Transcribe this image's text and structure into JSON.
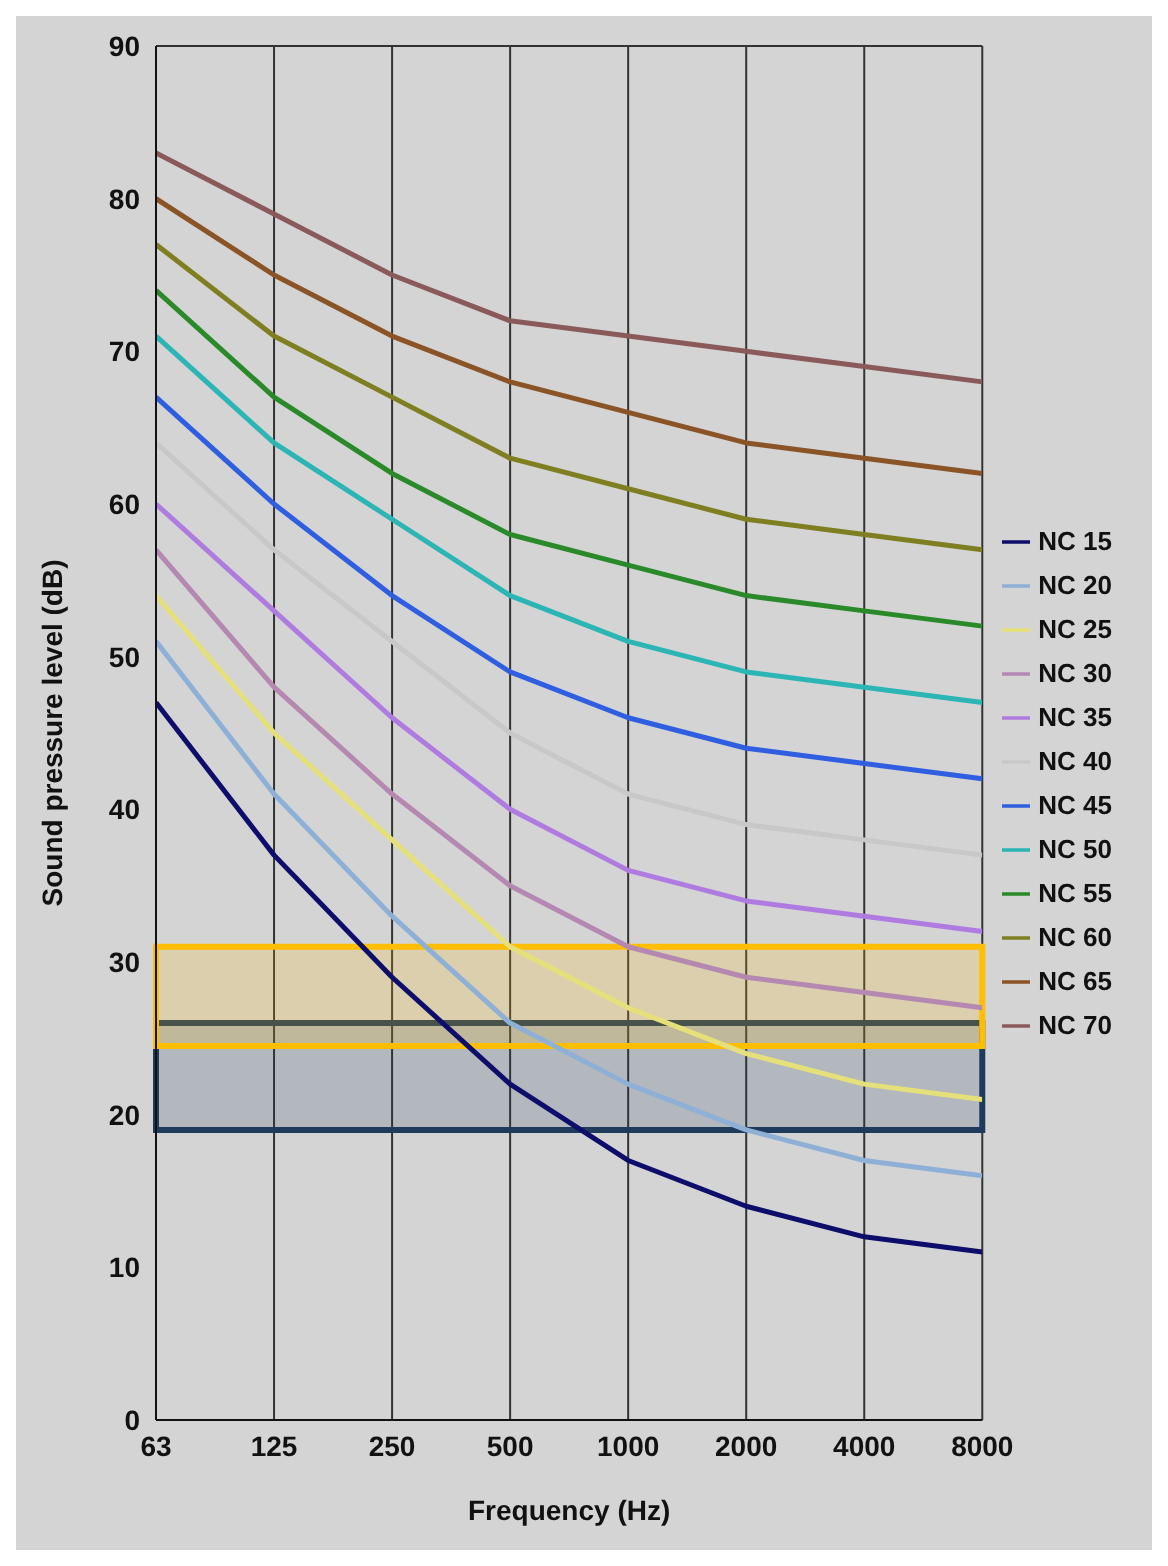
{
  "chart_data": {
    "type": "line",
    "xlabel": "Frequency (Hz)",
    "ylabel": "Sound pressure level (dB)",
    "categories": [
      "63",
      "125",
      "250",
      "500",
      "1000",
      "2000",
      "4000",
      "8000"
    ],
    "ylim": [
      0,
      90
    ],
    "yticks": [
      0,
      10,
      20,
      30,
      40,
      50,
      60,
      70,
      80,
      90
    ],
    "grid": true,
    "legend": "right",
    "marker": "none",
    "line_style": "solid",
    "series": [
      {
        "name": "NC 15",
        "color": "#0d0d6b",
        "values": [
          47,
          37,
          29,
          22,
          17,
          14,
          12,
          11
        ]
      },
      {
        "name": "NC 20",
        "color": "#8fb0d6",
        "values": [
          51,
          41,
          33,
          26,
          22,
          19,
          17,
          16
        ]
      },
      {
        "name": "NC 25",
        "color": "#e6e07a",
        "values": [
          54,
          45,
          38,
          31,
          27,
          24,
          22,
          21
        ]
      },
      {
        "name": "NC 30",
        "color": "#b488b0",
        "values": [
          57,
          48,
          41,
          35,
          31,
          29,
          28,
          27
        ]
      },
      {
        "name": "NC 35",
        "color": "#b07be0",
        "values": [
          60,
          53,
          46,
          40,
          36,
          34,
          33,
          32
        ]
      },
      {
        "name": "NC 40",
        "color": "#c8c8c8",
        "values": [
          64,
          57,
          51,
          45,
          41,
          39,
          38,
          37
        ]
      },
      {
        "name": "NC 45",
        "color": "#2f5fe0",
        "values": [
          67,
          60,
          54,
          49,
          46,
          44,
          43,
          42
        ]
      },
      {
        "name": "NC 50",
        "color": "#2bb5b5",
        "values": [
          71,
          64,
          59,
          54,
          51,
          49,
          48,
          47
        ]
      },
      {
        "name": "NC 55",
        "color": "#2a8a2a",
        "values": [
          74,
          67,
          62,
          58,
          56,
          54,
          53,
          52
        ]
      },
      {
        "name": "NC 60",
        "color": "#7f7f22",
        "values": [
          77,
          71,
          67,
          63,
          61,
          59,
          58,
          57
        ]
      },
      {
        "name": "NC 65",
        "color": "#8a5426",
        "values": [
          80,
          75,
          71,
          68,
          66,
          64,
          63,
          62
        ]
      },
      {
        "name": "NC 70",
        "color": "#8a5a5a",
        "values": [
          83,
          79,
          75,
          72,
          71,
          70,
          69,
          68
        ]
      }
    ],
    "bands": [
      {
        "axis": "y",
        "from": 19,
        "to": 26,
        "color": "#1f3b5c"
      },
      {
        "axis": "y",
        "from": 24.5,
        "to": 31,
        "color": "#ffbf00"
      }
    ]
  }
}
